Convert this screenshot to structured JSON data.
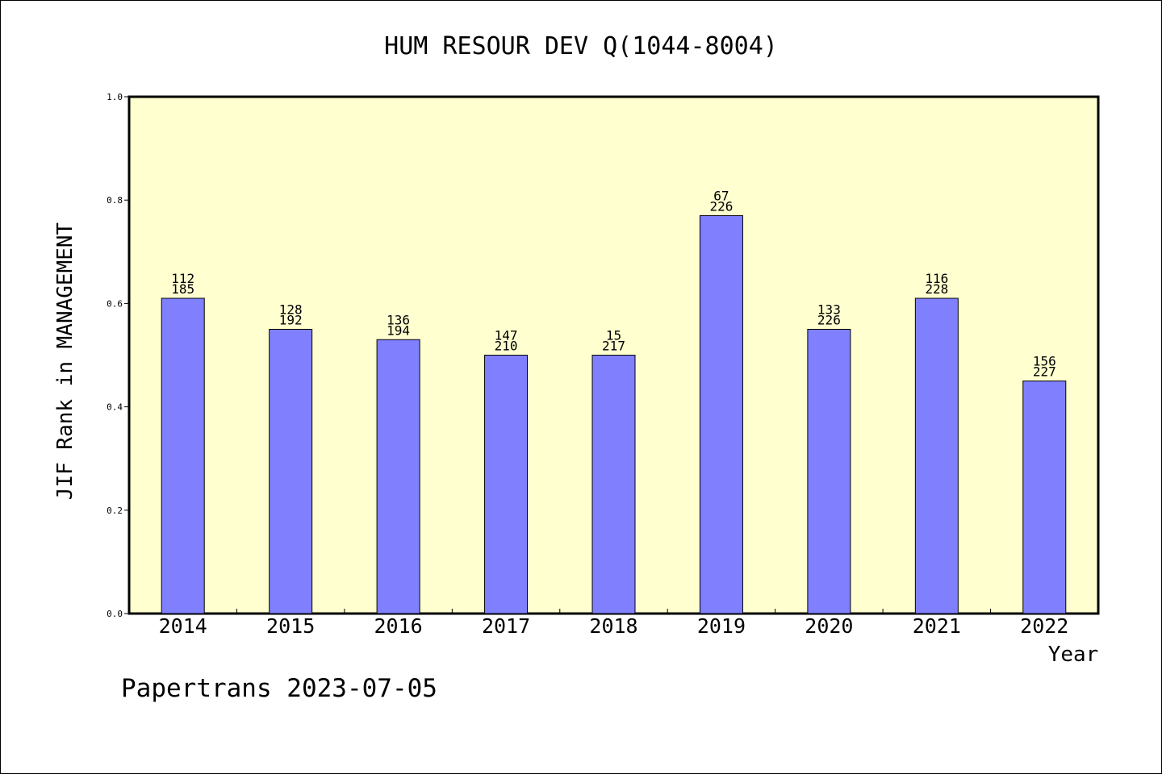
{
  "chart_data": {
    "type": "bar",
    "title": "HUM RESOUR DEV Q(1044-8004)",
    "xlabel": "Year",
    "ylabel": "JIF Rank in MANAGEMENT",
    "ylim": [
      0,
      1
    ],
    "yticks": [
      "0.0",
      "0.2",
      "0.4",
      "0.6",
      "0.8",
      "1.0"
    ],
    "categories": [
      "2014",
      "2015",
      "2016",
      "2017",
      "2018",
      "2019",
      "2020",
      "2021",
      "2022"
    ],
    "values": [
      0.61,
      0.55,
      0.53,
      0.5,
      0.5,
      0.77,
      0.55,
      0.61,
      0.45
    ],
    "annotations": [
      {
        "rank": "112",
        "total": "185"
      },
      {
        "rank": "128",
        "total": "192"
      },
      {
        "rank": "136",
        "total": "194"
      },
      {
        "rank": "147",
        "total": "210"
      },
      {
        "rank": "15",
        "total": "217"
      },
      {
        "rank": "67",
        "total": "226"
      },
      {
        "rank": "133",
        "total": "226"
      },
      {
        "rank": "116",
        "total": "228"
      },
      {
        "rank": "156",
        "total": "227"
      }
    ],
    "grid": false,
    "legend": "none",
    "colors": {
      "bar": "#8080ff",
      "plot_background": "#ffffd0",
      "axis": "#000000"
    }
  },
  "footer": {
    "text": "Papertrans 2023-07-05"
  }
}
